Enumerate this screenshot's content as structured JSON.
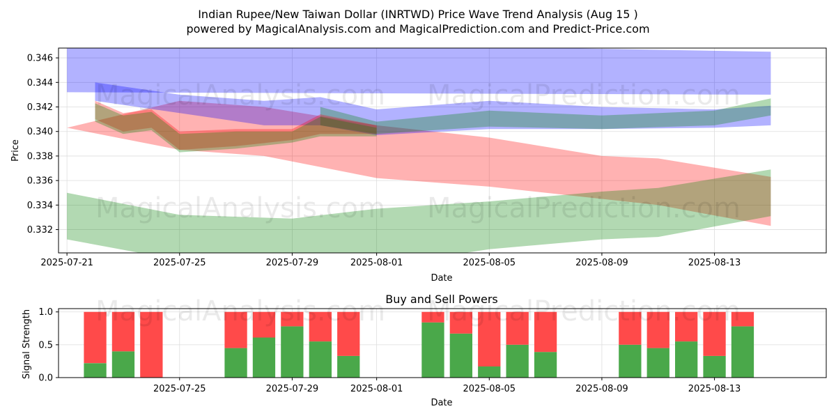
{
  "title_line1": "Indian Rupee/New Taiwan Dollar (INRTWD) Price Wave Trend Analysis (Aug 15 )",
  "title_line2": "powered by MagicalAnalysis.com and MagicalPrediction.com and Predict-Price.com",
  "watermarks": [
    "MagicalAnalysis.com",
    "MagicalPrediction.com"
  ],
  "colors": {
    "blue": "#0000ff",
    "red": "#ff0000",
    "green": "#008000",
    "buy": "#4aa84a",
    "sell": "#ff4a4a"
  },
  "chart_data": [
    {
      "type": "area",
      "xlabel": "Date",
      "ylabel": "Price",
      "ylim": [
        0.3301,
        0.3468
      ],
      "xlim": [
        "2025-07-20",
        "2025-08-16"
      ],
      "xticks": [
        "2025-07-21",
        "2025-07-25",
        "2025-07-29",
        "2025-08-01",
        "2025-08-05",
        "2025-08-09",
        "2025-08-13"
      ],
      "yticks": [
        "0.332",
        "0.334",
        "0.336",
        "0.338",
        "0.340",
        "0.342",
        "0.344",
        "0.346"
      ],
      "grid": true,
      "bands": [
        {
          "color": "blue",
          "x": [
            "2025-07-21",
            "2025-08-15"
          ],
          "upper": [
            0.3475,
            0.3465
          ],
          "lower": [
            0.3432,
            0.343
          ]
        },
        {
          "color": "red",
          "x": [
            "2025-07-21",
            "2025-07-25",
            "2025-07-28",
            "2025-08-01",
            "2025-08-05",
            "2025-08-09",
            "2025-08-11",
            "2025-08-15"
          ],
          "upper": [
            0.3403,
            0.3425,
            0.342,
            0.3405,
            0.3395,
            0.338,
            0.3378,
            0.3363
          ],
          "lower": [
            0.3403,
            0.3385,
            0.338,
            0.3362,
            0.3355,
            0.3345,
            0.334,
            0.3323
          ]
        },
        {
          "color": "green",
          "x": [
            "2025-07-21",
            "2025-07-25",
            "2025-07-29",
            "2025-08-01",
            "2025-08-05",
            "2025-08-09",
            "2025-08-11",
            "2025-08-15"
          ],
          "upper": [
            0.335,
            0.3332,
            0.3329,
            0.3337,
            0.3343,
            0.3351,
            0.3354,
            0.3369
          ],
          "lower": [
            0.3312,
            0.3295,
            0.329,
            0.329,
            0.3304,
            0.3312,
            0.3314,
            0.3331
          ]
        },
        {
          "color": "blue",
          "x": [
            "2025-07-22",
            "2025-07-25",
            "2025-07-28",
            "2025-07-30",
            "2025-08-01",
            "2025-08-05",
            "2025-08-09",
            "2025-08-13",
            "2025-08-15"
          ],
          "upper": [
            0.344,
            0.343,
            0.3425,
            0.3428,
            0.3418,
            0.3425,
            0.342,
            0.3418,
            0.3421
          ],
          "lower": [
            0.3425,
            0.3415,
            0.3405,
            0.3405,
            0.3397,
            0.3402,
            0.3402,
            0.3403,
            0.3405
          ]
        },
        {
          "color": "green",
          "x": [
            "2025-07-30",
            "2025-08-01",
            "2025-08-05",
            "2025-08-09",
            "2025-08-13",
            "2025-08-15"
          ],
          "upper": [
            0.342,
            0.3408,
            0.3417,
            0.3413,
            0.3417,
            0.3427
          ],
          "lower": [
            0.3405,
            0.3398,
            0.3404,
            0.3402,
            0.3405,
            0.3413
          ]
        },
        {
          "color": "red",
          "x": [
            "2025-07-22",
            "2025-07-23",
            "2025-07-24",
            "2025-07-25",
            "2025-07-27",
            "2025-07-29",
            "2025-07-30",
            "2025-08-01"
          ],
          "upper": [
            0.3425,
            0.3415,
            0.3418,
            0.34,
            0.3402,
            0.3402,
            0.3414,
            0.3405
          ],
          "lower": [
            0.341,
            0.34,
            0.3403,
            0.3385,
            0.3388,
            0.3393,
            0.3398,
            0.3398
          ]
        },
        {
          "color": "green",
          "x": [
            "2025-07-22",
            "2025-07-23",
            "2025-07-24",
            "2025-07-25",
            "2025-07-27",
            "2025-07-29",
            "2025-07-30",
            "2025-08-01"
          ],
          "upper": [
            0.3423,
            0.3413,
            0.3416,
            0.3398,
            0.34,
            0.34,
            0.3412,
            0.3403
          ],
          "lower": [
            0.3408,
            0.3398,
            0.3401,
            0.3383,
            0.3386,
            0.3391,
            0.3396,
            0.3396
          ]
        }
      ]
    },
    {
      "type": "bar",
      "title": "Buy and Sell Powers",
      "xlabel": "Date",
      "ylabel": "Signal Strength",
      "ylim": [
        0,
        1.05
      ],
      "yticks": [
        "0.0",
        "0.5",
        "1.0"
      ],
      "xticks": [
        "2025-07-25",
        "2025-07-29",
        "2025-08-01",
        "2025-08-05",
        "2025-08-09",
        "2025-08-13"
      ],
      "grid": true,
      "x": [
        "2025-07-22",
        "2025-07-23",
        "2025-07-24",
        "2025-07-27",
        "2025-07-28",
        "2025-07-29",
        "2025-07-30",
        "2025-07-31",
        "2025-08-03",
        "2025-08-04",
        "2025-08-05",
        "2025-08-06",
        "2025-08-07",
        "2025-08-10",
        "2025-08-11",
        "2025-08-12",
        "2025-08-13",
        "2025-08-14"
      ],
      "series": [
        {
          "name": "buy",
          "values": [
            0.22,
            0.4,
            0.0,
            0.45,
            0.61,
            0.78,
            0.55,
            0.33,
            0.84,
            0.67,
            0.17,
            0.5,
            0.39,
            0.5,
            0.45,
            0.55,
            0.33,
            0.78
          ]
        },
        {
          "name": "sell",
          "values": [
            0.78,
            0.6,
            1.0,
            0.55,
            0.39,
            0.22,
            0.45,
            0.67,
            0.16,
            0.33,
            0.83,
            0.5,
            0.61,
            0.5,
            0.55,
            0.45,
            0.67,
            0.22
          ]
        }
      ]
    }
  ]
}
